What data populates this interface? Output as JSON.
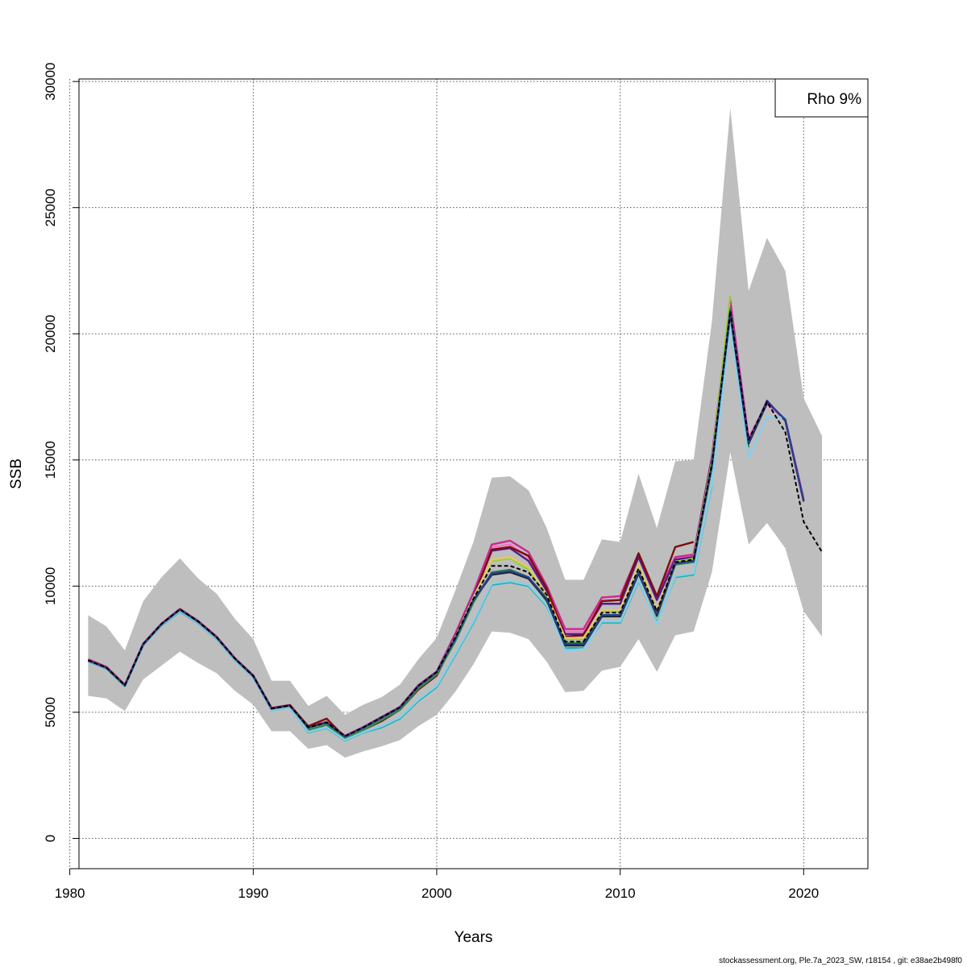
{
  "chart_data": {
    "type": "line",
    "title": "",
    "xlabel": "Years",
    "ylabel": "SSB",
    "xlim": [
      1980.5,
      2023.5
    ],
    "ylim": [
      -1200,
      30100
    ],
    "xticks": [
      1980,
      1990,
      2000,
      2010,
      2020
    ],
    "yticks": [
      0,
      5000,
      10000,
      15000,
      20000,
      25000,
      30000
    ],
    "grid": true,
    "legend": {
      "placement": "top-right",
      "text": "Rho 9%"
    },
    "confidence_band": {
      "color": "#bebebe",
      "years": [
        1981,
        1982,
        1983,
        1984,
        1985,
        1986,
        1987,
        1988,
        1989,
        1990,
        1991,
        1992,
        1993,
        1994,
        1995,
        1996,
        1997,
        1998,
        1999,
        2000,
        2001,
        2002,
        2003,
        2004,
        2005,
        2006,
        2007,
        2008,
        2009,
        2010,
        2011,
        2012,
        2013,
        2014,
        2015,
        2016,
        2017,
        2018,
        2019,
        2020,
        2021
      ],
      "upper": [
        8850,
        8400,
        7450,
        9400,
        10350,
        11100,
        10300,
        9700,
        8700,
        7900,
        6250,
        6250,
        5250,
        5650,
        4900,
        5300,
        5600,
        6100,
        7100,
        7950,
        9800,
        11750,
        14300,
        14350,
        13800,
        12300,
        10250,
        10250,
        11850,
        11750,
        14450,
        12300,
        14950,
        15000,
        20500,
        28950,
        21700,
        23800,
        22500,
        17450,
        15950
      ],
      "lower": [
        5650,
        5550,
        5050,
        6300,
        6850,
        7400,
        6950,
        6550,
        5850,
        5300,
        4250,
        4250,
        3550,
        3700,
        3200,
        3450,
        3650,
        3900,
        4450,
        4900,
        5800,
        6900,
        8200,
        8150,
        7900,
        7000,
        5800,
        5850,
        6650,
        6800,
        7900,
        6600,
        8050,
        8200,
        10550,
        15300,
        11650,
        12500,
        11500,
        9000,
        8000
      ]
    },
    "series": [
      {
        "color": "#ff6ec7",
        "years": [
          1981,
          1982,
          1983,
          1984,
          1985,
          1986,
          1987,
          1988,
          1989,
          1990,
          1991,
          1992,
          1993,
          1994,
          1995,
          1996,
          1997,
          1998,
          1999,
          2000,
          2001,
          2002,
          2003,
          2004,
          2005,
          2006,
          2007,
          2008,
          2009,
          2010,
          2011,
          2012,
          2013,
          2014,
          2015,
          2016,
          2017,
          2018,
          2019,
          2020
        ],
        "values": [
          7080,
          6780,
          6080,
          7700,
          8500,
          9080,
          8600,
          7980,
          7130,
          6440,
          5150,
          5270,
          4400,
          4600,
          4050,
          4400,
          4800,
          5200,
          6050,
          6600,
          8050,
          9700,
          11550,
          11650,
          11150,
          9850,
          8200,
          8200,
          9450,
          9450,
          11250,
          9550,
          11100,
          11200,
          15100,
          21400,
          15900,
          17200,
          16600,
          13500
        ]
      },
      {
        "color": "#cd2990",
        "years": [
          1981,
          1982,
          1983,
          1984,
          1985,
          1986,
          1987,
          1988,
          1989,
          1990,
          1991,
          1992,
          1993,
          1994,
          1995,
          1996,
          1997,
          1998,
          1999,
          2000,
          2001,
          2002,
          2003,
          2004,
          2005,
          2006,
          2007,
          2008,
          2009,
          2010,
          2011,
          2012,
          2013,
          2014,
          2015,
          2016,
          2017,
          2018,
          2019,
          2020
        ],
        "values": [
          7100,
          6800,
          6100,
          7720,
          8520,
          9100,
          8620,
          8000,
          7150,
          6460,
          5170,
          5290,
          4420,
          4620,
          4070,
          4420,
          4820,
          5220,
          6080,
          6620,
          8100,
          9750,
          11650,
          11800,
          11350,
          10000,
          8300,
          8300,
          9550,
          9600,
          11300,
          9600,
          11150,
          11250,
          15150,
          21300,
          15800,
          17300,
          16600,
          13400
        ]
      },
      {
        "color": "#551a8b",
        "years": [
          1981,
          1982,
          1983,
          1984,
          1985,
          1986,
          1987,
          1988,
          1989,
          1990,
          1991,
          1992,
          1993,
          1994,
          1995,
          1996,
          1997,
          1998,
          1999,
          2000,
          2001,
          2002,
          2003,
          2004,
          2005,
          2006,
          2007,
          2008,
          2009,
          2010,
          2011,
          2012,
          2013,
          2014,
          2015,
          2016,
          2017,
          2018,
          2019,
          2020
        ],
        "values": [
          7050,
          6760,
          6060,
          7690,
          8490,
          9070,
          8590,
          7970,
          7120,
          6430,
          5140,
          5260,
          4390,
          4590,
          4040,
          4390,
          4790,
          5190,
          6040,
          6590,
          8000,
          9600,
          11400,
          11500,
          11000,
          9800,
          8100,
          8100,
          9300,
          9300,
          11150,
          9450,
          11050,
          11150,
          15050,
          21000,
          15700,
          17350,
          16550,
          13350
        ]
      },
      {
        "color": "#7b0e0e",
        "years": [
          1981,
          1982,
          1983,
          1984,
          1985,
          1986,
          1987,
          1988,
          1989,
          1990,
          1991,
          1992,
          1993,
          1994,
          1995,
          1996,
          1997,
          1998,
          1999,
          2000,
          2001,
          2002,
          2003,
          2004,
          2005,
          2006,
          2007,
          2008,
          2009,
          2010,
          2011,
          2012,
          2013,
          2014
        ],
        "values": [
          7060,
          6770,
          6070,
          7700,
          8500,
          9080,
          8600,
          7980,
          7130,
          6450,
          5160,
          5280,
          4450,
          4750,
          4000,
          4300,
          4650,
          5100,
          5900,
          6450,
          7900,
          9500,
          11450,
          11550,
          11200,
          9900,
          8000,
          8050,
          9400,
          9450,
          11300,
          9600,
          11550,
          11750
        ]
      },
      {
        "color": "#9acd32",
        "years": [
          1981,
          1982,
          1983,
          1984,
          1985,
          1986,
          1987,
          1988,
          1989,
          1990,
          1991,
          1992,
          1993,
          1994,
          1995,
          1996,
          1997,
          1998,
          1999,
          2000,
          2001,
          2002,
          2003,
          2004,
          2005,
          2006,
          2007,
          2008,
          2009,
          2010,
          2011,
          2012,
          2013,
          2014,
          2015,
          2016
        ],
        "values": [
          7040,
          6750,
          6050,
          7680,
          8480,
          9060,
          8580,
          7960,
          7110,
          6420,
          5130,
          5250,
          4380,
          4580,
          4030,
          4380,
          4780,
          5180,
          6030,
          6580,
          7950,
          9550,
          11000,
          11100,
          10650,
          9600,
          7900,
          7900,
          9000,
          9000,
          10800,
          9050,
          10950,
          11100,
          14950,
          21500
        ]
      },
      {
        "color": "#e0c86a",
        "years": [
          1981,
          1982,
          1983,
          1984,
          1985,
          1986,
          1987,
          1988,
          1989,
          1990,
          1991,
          1992,
          1993,
          1994,
          1995,
          1996,
          1997,
          1998,
          1999,
          2000,
          2001,
          2002,
          2003,
          2004,
          2005,
          2006,
          2007,
          2008,
          2009,
          2010,
          2011,
          2012,
          2013
        ],
        "values": [
          7040,
          6750,
          6050,
          7680,
          8480,
          9060,
          8580,
          7960,
          7110,
          6420,
          5130,
          5250,
          4380,
          4580,
          4030,
          4380,
          4780,
          5180,
          6030,
          6580,
          7950,
          9550,
          11050,
          11150,
          10750,
          9650,
          7950,
          7950,
          9050,
          9050,
          10850,
          9100,
          10900
        ]
      },
      {
        "color": "#2e8b57",
        "years": [
          1981,
          1982,
          1983,
          1984,
          1985,
          1986,
          1987,
          1988,
          1989,
          1990,
          1991,
          1992,
          1993,
          1994,
          1995,
          1996,
          1997,
          1998,
          1999,
          2000,
          2001,
          2002,
          2003,
          2004,
          2005,
          2006,
          2007,
          2008,
          2009,
          2010,
          2011,
          2012,
          2013,
          2014,
          2015,
          2016,
          2017
        ],
        "values": [
          7020,
          6730,
          6030,
          7660,
          8450,
          9000,
          8540,
          7920,
          7080,
          6400,
          5100,
          5220,
          4300,
          4500,
          3950,
          4300,
          4700,
          5100,
          5950,
          6500,
          7800,
          9350,
          10550,
          10650,
          10350,
          9400,
          7750,
          7750,
          8850,
          8850,
          10550,
          8800,
          10850,
          10950,
          14700,
          21000,
          15500
        ]
      },
      {
        "color": "#20b2aa",
        "years": [
          1981,
          1982,
          1983,
          1984,
          1985,
          1986,
          1987,
          1988,
          1989,
          1990,
          1991,
          1992,
          1993,
          1994,
          1995,
          1996,
          1997,
          1998,
          1999,
          2000,
          2001,
          2002,
          2003,
          2004,
          2005,
          2006,
          2007,
          2008,
          2009,
          2010,
          2011,
          2012,
          2013,
          2014,
          2015
        ],
        "values": [
          7020,
          6730,
          6030,
          7660,
          8440,
          8990,
          8530,
          7910,
          7060,
          6380,
          5080,
          5200,
          4200,
          4380,
          3880,
          4200,
          4400,
          4750,
          5450,
          6000,
          7250,
          8550,
          10050,
          10150,
          10000,
          9200,
          7550,
          7550,
          8550,
          8550,
          10200,
          8550,
          10350,
          10450,
          14000
        ]
      },
      {
        "color": "#87ceeb",
        "years": [
          1981,
          1982,
          1983,
          1984,
          1985,
          1986,
          1987,
          1988,
          1989,
          1990,
          1991,
          1992,
          1993,
          1994,
          1995,
          1996,
          1997,
          1998,
          1999,
          2000,
          2001,
          2002,
          2003,
          2004,
          2005,
          2006,
          2007,
          2008,
          2009,
          2010,
          2011,
          2012,
          2013,
          2014,
          2015,
          2016,
          2017,
          2018,
          2019
        ],
        "values": [
          7030,
          6740,
          6040,
          7670,
          8460,
          9020,
          8550,
          7930,
          7070,
          6390,
          5090,
          5210,
          4220,
          4400,
          3900,
          4220,
          4450,
          4800,
          5500,
          6050,
          7300,
          8600,
          10100,
          10200,
          10050,
          9250,
          7450,
          7500,
          8600,
          8600,
          10250,
          8500,
          10400,
          10500,
          14050,
          20300,
          15100,
          16700,
          16700
        ]
      },
      {
        "color": "#1c1c1c",
        "years": [
          1981,
          1982,
          1983,
          1984,
          1985,
          1986,
          1987,
          1988,
          1989,
          1990,
          1991,
          1992,
          1993,
          1994,
          1995,
          1996,
          1997,
          1998,
          1999,
          2000,
          2001,
          2002,
          2003,
          2004,
          2005,
          2006,
          2007,
          2008,
          2009,
          2010,
          2011,
          2012,
          2013,
          2014,
          2015,
          2016,
          2017,
          2018
        ],
        "values": [
          7050,
          6760,
          6060,
          7690,
          8490,
          9070,
          8590,
          7970,
          7120,
          6430,
          5140,
          5260,
          4390,
          4590,
          4040,
          4390,
          4790,
          5190,
          6040,
          6590,
          7900,
          9450,
          10450,
          10550,
          10300,
          9450,
          7650,
          7650,
          8800,
          8800,
          10500,
          8850,
          10900,
          11000,
          14800,
          20800,
          15650,
          17250
        ]
      },
      {
        "color": "#27408b",
        "years": [
          1981,
          1982,
          1983,
          1984,
          1985,
          1986,
          1987,
          1988,
          1989,
          1990,
          1991,
          1992,
          1993,
          1994,
          1995,
          1996,
          1997,
          1998,
          1999,
          2000,
          2001,
          2002,
          2003,
          2004,
          2005,
          2006,
          2007,
          2008,
          2009,
          2010,
          2011,
          2012,
          2013,
          2014,
          2015,
          2016,
          2017,
          2018,
          2019,
          2020
        ],
        "values": [
          7050,
          6760,
          6060,
          7690,
          8490,
          9070,
          8590,
          7970,
          7120,
          6430,
          5140,
          5260,
          4390,
          4590,
          4040,
          4390,
          4790,
          5190,
          6040,
          6590,
          7900,
          9450,
          10500,
          10600,
          10350,
          9500,
          7700,
          7700,
          8850,
          8850,
          10550,
          8900,
          10900,
          11000,
          14800,
          20900,
          15700,
          17300,
          16600,
          13400
        ]
      },
      {
        "color": "#000000",
        "dashed": true,
        "years": [
          1981,
          1982,
          1983,
          1984,
          1985,
          1986,
          1987,
          1988,
          1989,
          1990,
          1991,
          1992,
          1993,
          1994,
          1995,
          1996,
          1997,
          1998,
          1999,
          2000,
          2001,
          2002,
          2003,
          2004,
          2005,
          2006,
          2007,
          2008,
          2009,
          2010,
          2011,
          2012,
          2013,
          2014,
          2015,
          2016,
          2017,
          2018,
          2019,
          2020,
          2021
        ],
        "values": [
          7060,
          6770,
          6070,
          7700,
          8500,
          9080,
          8600,
          7980,
          7130,
          6440,
          5150,
          5270,
          4400,
          4600,
          4050,
          4400,
          4800,
          5200,
          6050,
          6600,
          7950,
          9500,
          10800,
          10800,
          10550,
          9650,
          7800,
          7800,
          8950,
          8950,
          10700,
          9000,
          10950,
          11050,
          14850,
          20900,
          15800,
          17300,
          16100,
          12550,
          11350
        ]
      }
    ]
  },
  "footer_text": "stockassessment.org, Ple.7a_2023_SW, r18154 , git: e38ae2b498f0"
}
